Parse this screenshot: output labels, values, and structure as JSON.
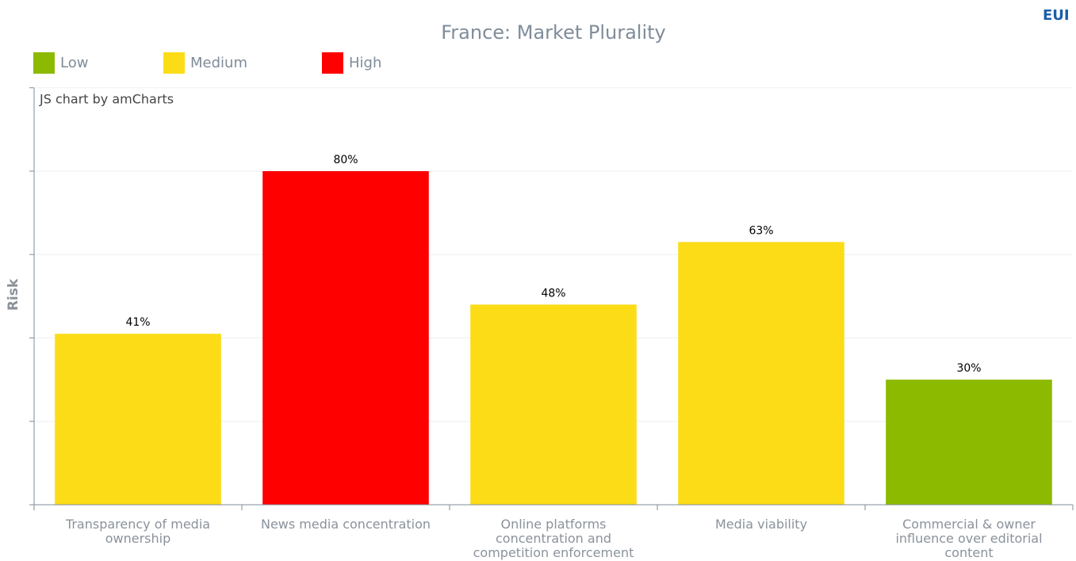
{
  "chart_data": {
    "type": "bar",
    "title": "France: Market Plurality",
    "y_label": "Risk",
    "credit": "JS chart by amCharts",
    "logo": "EUI",
    "legend": [
      {
        "name": "Low",
        "color": "#8cba00"
      },
      {
        "name": "Medium",
        "color": "#fcdc17"
      },
      {
        "name": "High",
        "color": "#ff0000"
      }
    ],
    "categories": [
      "Transparency of media ownership",
      "News media concentration",
      "Online platforms concentration and competition enforcement",
      "Media viability",
      "Commercial & owner influence over editorial content"
    ],
    "values": [
      41,
      80,
      48,
      63,
      30
    ],
    "value_labels": [
      "41%",
      "80%",
      "48%",
      "63%",
      "30%"
    ],
    "colors": [
      "#fcdc17",
      "#ff0000",
      "#fcdc17",
      "#fcdc17",
      "#8cba00"
    ],
    "ylim": [
      0,
      100
    ],
    "yticks": [
      0,
      20,
      40,
      60,
      80,
      100
    ],
    "grid": true
  }
}
